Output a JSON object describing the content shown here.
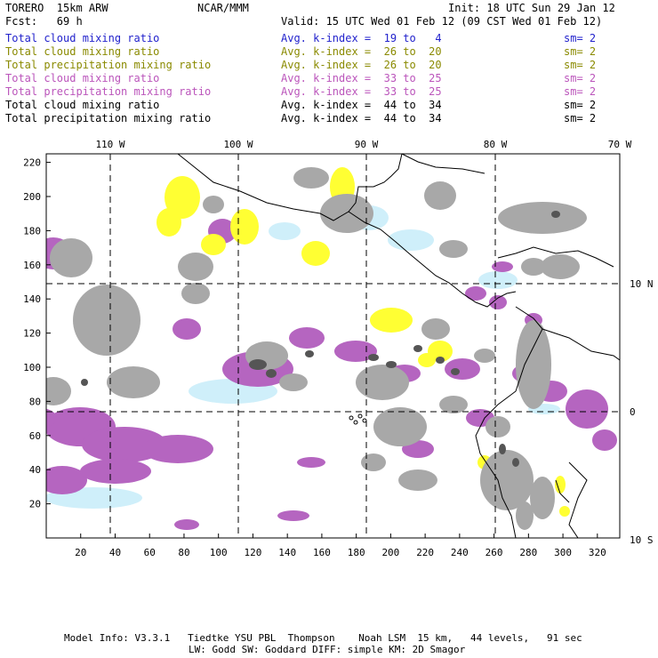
{
  "header": {
    "model": "TORERO  15km ARW",
    "org": "NCAR/MMM",
    "init": "Init: 18 UTC Sun 29 Jan 12",
    "fcst": "Fcst:   69 h",
    "valid": "Valid: 15 UTC Wed 01 Feb 12 (09 CST Wed 01 Feb 12)"
  },
  "legend": [
    {
      "field": "Total cloud mixing ratio",
      "kindex": "Avg. k-index =  19 to   4",
      "sm": "sm= 2",
      "color": "#2222cc"
    },
    {
      "field": "Total cloud mixing ratio",
      "kindex": "Avg. k-index =  26 to  20",
      "sm": "sm= 2",
      "color": "#8a8a00"
    },
    {
      "field": "Total precipitation mixing ratio",
      "kindex": "Avg. k-index =  26 to  20",
      "sm": "sm= 2",
      "color": "#8a8a00"
    },
    {
      "field": "Total cloud mixing ratio",
      "kindex": "Avg. k-index =  33 to  25",
      "sm": "sm= 2",
      "color": "#bb55bb"
    },
    {
      "field": "Total precipitation mixing ratio",
      "kindex": "Avg. k-index =  33 to  25",
      "sm": "sm= 2",
      "color": "#bb55bb"
    },
    {
      "field": "Total cloud mixing ratio",
      "kindex": "Avg. k-index =  44 to  34",
      "sm": "sm= 2",
      "color": "#000000"
    },
    {
      "field": "Total precipitation mixing ratio",
      "kindex": "Avg. k-index =  44 to  34",
      "sm": "sm= 2",
      "color": "#000000"
    }
  ],
  "map": {
    "longitude_labels": [
      "110 W",
      "100 W",
      "90 W",
      "80 W",
      "70 W"
    ],
    "latitude_labels": [
      "10 N",
      "0",
      "10 S"
    ],
    "x_ticks": [
      20,
      40,
      60,
      80,
      100,
      120,
      140,
      160,
      180,
      200,
      220,
      240,
      260,
      280,
      300,
      320
    ],
    "y_ticks": [
      20,
      40,
      60,
      80,
      100,
      120,
      140,
      160,
      180,
      200,
      220
    ],
    "x_range": [
      0,
      333
    ],
    "y_range": [
      0,
      225
    ],
    "colors": {
      "gray": "#a8a8a8",
      "dark_gray": "#555555",
      "purple": "#b565c0",
      "yellow": "#ffff33",
      "light_blue": "#cfeffa"
    }
  },
  "footer": {
    "line1": "Model Info: V3.3.1   Tiedtke YSU PBL  Thompson    Noah LSM  15 km,   44 levels,   91 sec",
    "line2": "LW: Godd SW: Goddard DIFF: simple KM: 2D Smagor"
  }
}
